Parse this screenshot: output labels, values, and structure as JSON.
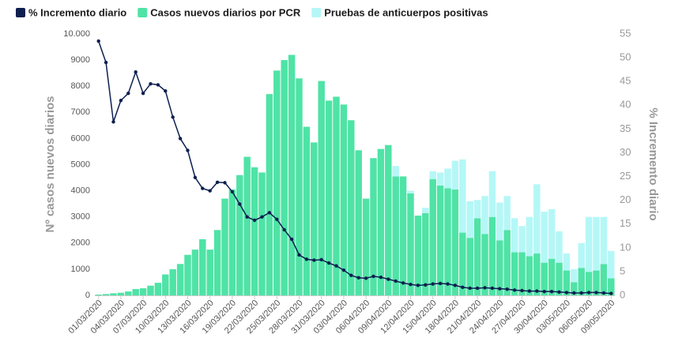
{
  "chart_data": {
    "type": "bar",
    "stacked": true,
    "y_label": "Nº casos nuevos diarios",
    "y2_label": "% Incremento diario",
    "categories": [
      "01/03/2020",
      null,
      null,
      "04/03/2020",
      null,
      null,
      "07/03/2020",
      null,
      null,
      "10/03/2020",
      null,
      null,
      "13/03/2020",
      null,
      null,
      "16/03/2020",
      null,
      null,
      "19/03/2020",
      null,
      null,
      "22/03/2020",
      null,
      null,
      "25/03/2020",
      null,
      null,
      "28/03/2020",
      null,
      null,
      "31/03/2020",
      null,
      null,
      "03/04/2020",
      null,
      null,
      "06/04/2020",
      null,
      null,
      "09/04/2020",
      null,
      null,
      "12/04/2020",
      null,
      null,
      "15/04/2020",
      null,
      null,
      "18/04/2020",
      null,
      null,
      "21/04/2020",
      null,
      null,
      "24/04/2020",
      null,
      null,
      "27/04/2020",
      null,
      null,
      "30/04/2020",
      null,
      null,
      "03/05/2020",
      null,
      null,
      "06/05/2020",
      null,
      null,
      "09/05/2020"
    ],
    "series": [
      {
        "name": "% Incremento diario",
        "type": "line",
        "axis": "y2",
        "color": "#0d1f4f",
        "values": [
          53.5,
          49,
          36.5,
          41,
          42.5,
          47,
          42.5,
          44.5,
          44.3,
          43,
          37.5,
          33,
          30.5,
          24.8,
          22.5,
          22,
          23.8,
          23.7,
          21.8,
          19.2,
          16.5,
          15.8,
          16.5,
          17.4,
          16,
          13.8,
          11.8,
          8.5,
          7.6,
          7.4,
          7.5,
          6.8,
          6.2,
          5.3,
          4.2,
          3.7,
          3.6,
          4,
          3.8,
          3.4,
          3,
          2.6,
          2.3,
          2.1,
          2.2,
          2.4,
          2.5,
          2.4,
          2.1,
          1.7,
          1.5,
          1.5,
          1.6,
          1.5,
          1.4,
          1.3,
          1.1,
          1,
          0.9,
          0.9,
          0.8,
          0.8,
          0.7,
          0.6,
          0.5,
          0.5,
          0.6,
          0.6,
          0.5,
          0.4
        ]
      },
      {
        "name": "Casos nuevos diarios por PCR",
        "color": "#4fe3a6",
        "values": [
          30,
          50,
          80,
          100,
          150,
          240,
          270,
          370,
          480,
          800,
          1000,
          1200,
          1550,
          1750,
          2150,
          1750,
          2500,
          3700,
          4050,
          4600,
          5300,
          4900,
          4700,
          7700,
          8600,
          9000,
          9200,
          8300,
          6450,
          5850,
          8200,
          7450,
          7600,
          7300,
          6700,
          5550,
          3700,
          5250,
          5600,
          5750,
          4550,
          4550,
          3900,
          3050,
          3150,
          4450,
          4200,
          4100,
          4050,
          2400,
          2200,
          2950,
          2350,
          3000,
          2100,
          2500,
          1650,
          1650,
          1500,
          1600,
          1250,
          1400,
          1250,
          950,
          500,
          1050,
          900,
          950,
          1200,
          650
        ]
      },
      {
        "name": "Pruebas de anticuerpos positivas",
        "color": "#b5f7f7",
        "values": [
          0,
          0,
          0,
          0,
          0,
          0,
          0,
          0,
          0,
          0,
          0,
          0,
          0,
          0,
          0,
          0,
          0,
          0,
          0,
          0,
          0,
          0,
          0,
          0,
          0,
          0,
          0,
          0,
          0,
          0,
          0,
          0,
          0,
          0,
          0,
          0,
          0,
          0,
          0,
          0,
          400,
          0,
          100,
          0,
          200,
          300,
          500,
          750,
          1100,
          2800,
          1400,
          700,
          1450,
          1750,
          1450,
          1300,
          1300,
          1000,
          1500,
          2650,
          1950,
          1900,
          1200,
          650,
          500,
          950,
          2100,
          2050,
          1800,
          1050
        ]
      }
    ],
    "ylim": [
      0,
      10000
    ],
    "yticks": [
      0,
      1000,
      2000,
      3000,
      4000,
      5000,
      6000,
      7000,
      8000,
      9000,
      {
        "value": 10000,
        "label": "10.000"
      }
    ],
    "y2lim": [
      0,
      55
    ],
    "y2ticks": [
      0,
      5,
      10,
      15,
      20,
      25,
      30,
      35,
      40,
      45,
      50,
      55
    ],
    "grid": false,
    "legend": "top-left"
  }
}
